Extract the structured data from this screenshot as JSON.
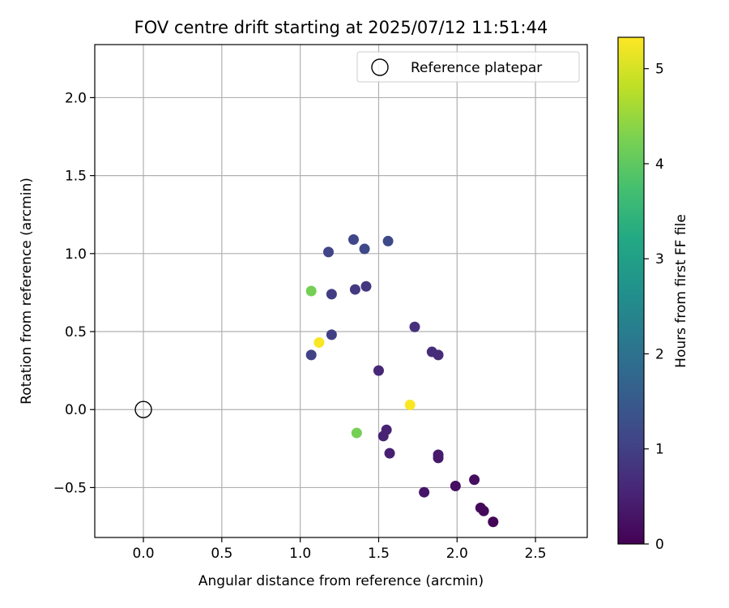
{
  "chart_data": {
    "type": "scatter",
    "title": "FOV centre drift starting at 2025/07/12 11:51:44",
    "xlabel": "Angular distance from reference (arcmin)",
    "ylabel": "Rotation from reference (arcmin)",
    "xlim": [
      -0.31,
      2.83
    ],
    "ylim": [
      -0.82,
      2.34
    ],
    "xticks": [
      0.0,
      0.5,
      1.0,
      1.5,
      2.0,
      2.5
    ],
    "xtick_labels": [
      "0.0",
      "0.5",
      "1.0",
      "1.5",
      "2.0",
      "2.5"
    ],
    "yticks": [
      -0.5,
      0.0,
      0.5,
      1.0,
      1.5,
      2.0
    ],
    "ytick_labels": [
      "−0.5",
      "0.0",
      "0.5",
      "1.0",
      "1.5",
      "2.0"
    ],
    "grid": true,
    "legend": {
      "position": "top-right",
      "entries": [
        "Reference platepar"
      ]
    },
    "reference_point": {
      "x": 0.0,
      "y": 0.0,
      "label": "Reference platepar"
    },
    "colorbar": {
      "label": "Hours from first FF file",
      "colormap": "viridis",
      "range": [
        0,
        5.33
      ],
      "ticks": [
        0,
        1,
        2,
        3,
        4,
        5
      ],
      "tick_labels": [
        "0",
        "1",
        "2",
        "3",
        "4",
        "5"
      ]
    },
    "series": [
      {
        "points": [
          {
            "x": 2.23,
            "y": -0.72,
            "hours": 0.05
          },
          {
            "x": 2.17,
            "y": -0.65,
            "hours": 0.1
          },
          {
            "x": 2.15,
            "y": -0.63,
            "hours": 0.12
          },
          {
            "x": 2.11,
            "y": -0.45,
            "hours": 0.18
          },
          {
            "x": 1.99,
            "y": -0.49,
            "hours": 0.22
          },
          {
            "x": 1.79,
            "y": -0.53,
            "hours": 0.3
          },
          {
            "x": 1.88,
            "y": -0.31,
            "hours": 0.35
          },
          {
            "x": 1.88,
            "y": -0.29,
            "hours": 0.38
          },
          {
            "x": 1.57,
            "y": -0.28,
            "hours": 0.45
          },
          {
            "x": 1.53,
            "y": -0.17,
            "hours": 0.5
          },
          {
            "x": 1.55,
            "y": -0.13,
            "hours": 0.52
          },
          {
            "x": 1.5,
            "y": 0.25,
            "hours": 0.58
          },
          {
            "x": 1.88,
            "y": 0.35,
            "hours": 0.65
          },
          {
            "x": 1.84,
            "y": 0.37,
            "hours": 0.68
          },
          {
            "x": 1.73,
            "y": 0.53,
            "hours": 0.75
          },
          {
            "x": 1.42,
            "y": 0.79,
            "hours": 0.85
          },
          {
            "x": 1.35,
            "y": 0.77,
            "hours": 0.9
          },
          {
            "x": 1.2,
            "y": 0.74,
            "hours": 0.95
          },
          {
            "x": 1.2,
            "y": 0.48,
            "hours": 1.0
          },
          {
            "x": 1.07,
            "y": 0.35,
            "hours": 1.05
          },
          {
            "x": 1.18,
            "y": 1.01,
            "hours": 1.1
          },
          {
            "x": 1.34,
            "y": 1.09,
            "hours": 1.12
          },
          {
            "x": 1.41,
            "y": 1.03,
            "hours": 1.15
          },
          {
            "x": 1.56,
            "y": 1.08,
            "hours": 1.18
          },
          {
            "x": 1.07,
            "y": 0.76,
            "hours": 4.2
          },
          {
            "x": 1.36,
            "y": -0.15,
            "hours": 4.2
          },
          {
            "x": 1.12,
            "y": 0.43,
            "hours": 5.3
          },
          {
            "x": 1.7,
            "y": 0.03,
            "hours": 5.3
          }
        ]
      }
    ]
  }
}
